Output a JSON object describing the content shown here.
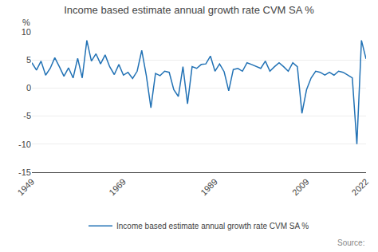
{
  "chart_data": {
    "type": "line",
    "title": "Income based estimate annual growth rate CVM SA %",
    "ylabel": "%",
    "annotations": [
      "Source:"
    ],
    "x": [
      1949,
      1950,
      1951,
      1952,
      1953,
      1954,
      1955,
      1956,
      1957,
      1958,
      1959,
      1960,
      1961,
      1962,
      1963,
      1964,
      1965,
      1966,
      1967,
      1968,
      1969,
      1970,
      1971,
      1972,
      1973,
      1974,
      1975,
      1976,
      1977,
      1978,
      1979,
      1980,
      1981,
      1982,
      1983,
      1984,
      1985,
      1986,
      1987,
      1988,
      1989,
      1990,
      1991,
      1992,
      1993,
      1994,
      1995,
      1996,
      1997,
      1998,
      1999,
      2000,
      2001,
      2002,
      2003,
      2004,
      2005,
      2006,
      2007,
      2008,
      2009,
      2010,
      2011,
      2012,
      2013,
      2014,
      2015,
      2016,
      2017,
      2018,
      2019,
      2020,
      2021,
      2022
    ],
    "series": [
      {
        "name": "Income based estimate annual growth rate CVM SA %",
        "color": "#2272b5",
        "values": [
          4.5,
          3.2,
          4.8,
          2.3,
          3.5,
          5.4,
          3.8,
          2.1,
          3.6,
          1.8,
          5.3,
          1.8,
          8.5,
          4.8,
          6.1,
          4.3,
          5.9,
          3.8,
          2.4,
          4.2,
          2.3,
          2.8,
          1.7,
          3.0,
          6.7,
          2.2,
          -3.5,
          2.6,
          2.2,
          3.0,
          2.8,
          -0.3,
          -1.5,
          3.8,
          -2.8,
          3.8,
          3.5,
          4.2,
          4.3,
          5.7,
          3.0,
          4.3,
          2.9,
          -0.5,
          3.3,
          3.5,
          3.0,
          4.5,
          4.2,
          3.8,
          3.5,
          4.8,
          3.0,
          3.8,
          4.5,
          3.8,
          3.0,
          4.5,
          3.8,
          -4.5,
          -0.3,
          1.8,
          3.0,
          2.8,
          2.3,
          2.8,
          2.3,
          3.0,
          2.8,
          2.3,
          1.8,
          -10.0,
          8.5,
          5.2
        ]
      }
    ],
    "xlim": [
      1949,
      2022
    ],
    "xticks": [
      1949,
      1969,
      1989,
      2009,
      2022
    ],
    "ylim": [
      -15,
      10
    ],
    "yticks": [
      -15,
      -10,
      -5,
      0,
      5,
      10
    ],
    "grid": "y",
    "legend": "bottom"
  }
}
